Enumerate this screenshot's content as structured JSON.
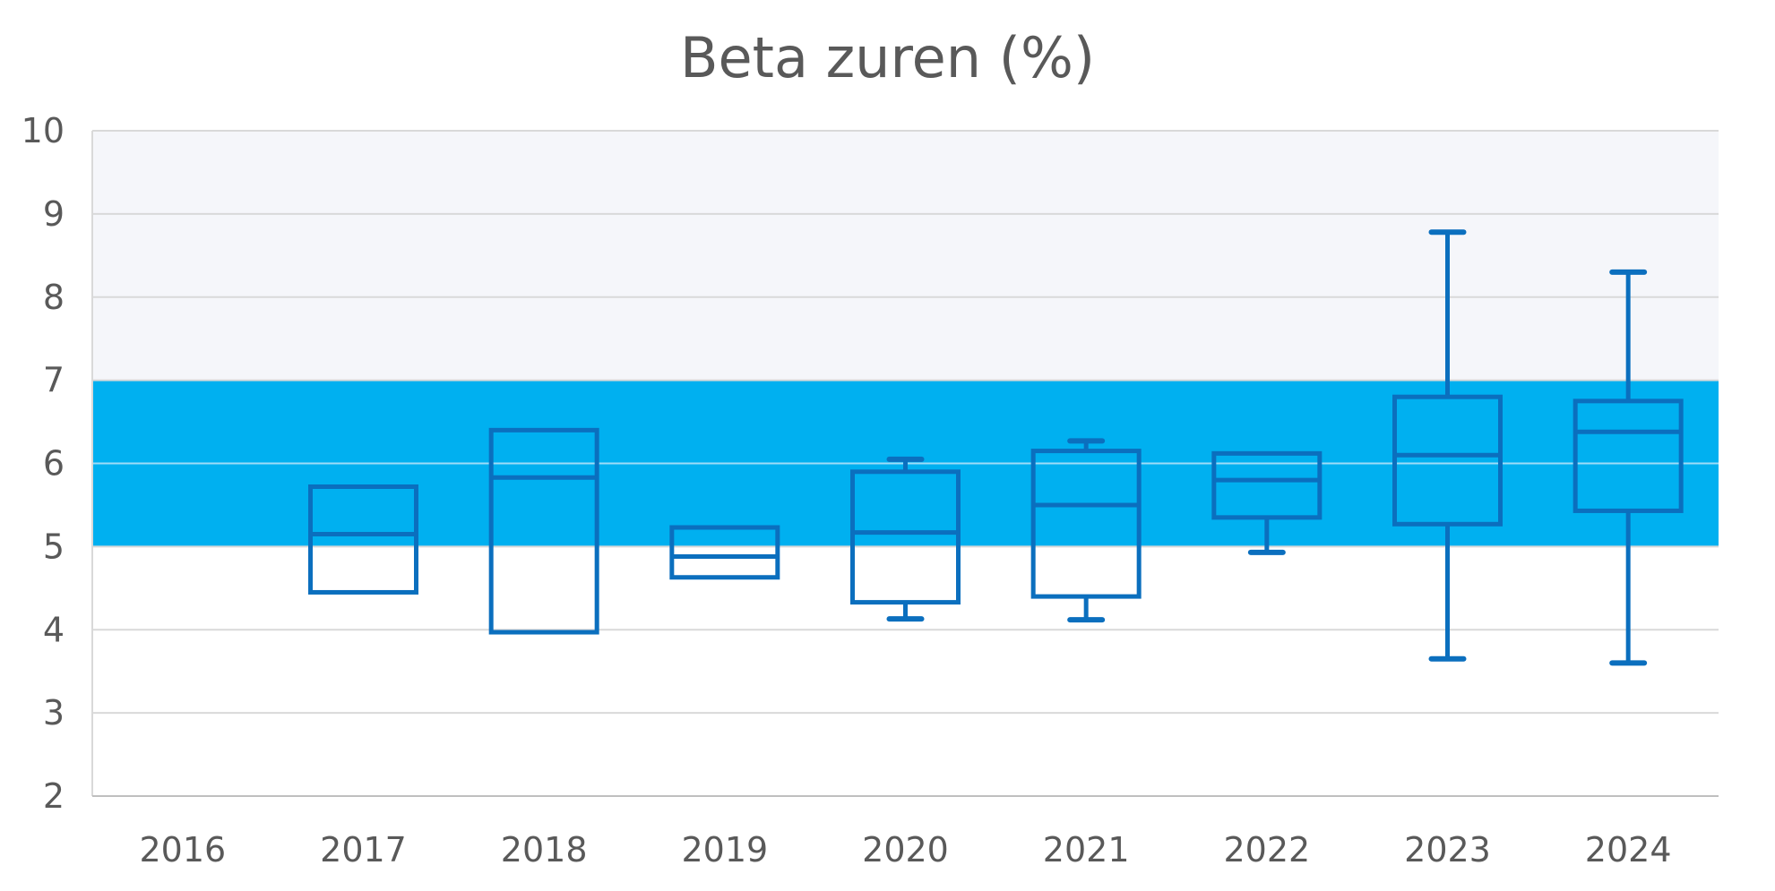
{
  "chart_data": {
    "type": "boxplot",
    "title": "Beta zuren (%)",
    "xlabel": "",
    "ylabel": "",
    "ylim": [
      2,
      10
    ],
    "yticks": [
      "2",
      "3",
      "4",
      "5",
      "6",
      "7",
      "8",
      "9",
      "10"
    ],
    "categories": [
      "2016",
      "2017",
      "2018",
      "2019",
      "2020",
      "2021",
      "2022",
      "2023",
      "2024"
    ],
    "reference_band": {
      "low": 5.0,
      "high": 7.0,
      "color": "#00B0F0"
    },
    "upper_region_color": "#F5F6FA",
    "box_color": "#0B6FBE",
    "grid": true,
    "boxes": [
      {
        "category": "2016",
        "min": null,
        "q1": null,
        "median": null,
        "q3": null,
        "max": null
      },
      {
        "category": "2017",
        "min": 4.45,
        "q1": 4.45,
        "median": 5.15,
        "q3": 5.72,
        "max": 5.72
      },
      {
        "category": "2018",
        "min": 3.97,
        "q1": 3.97,
        "median": 5.83,
        "q3": 6.4,
        "max": 6.4
      },
      {
        "category": "2019",
        "min": 4.63,
        "q1": 4.63,
        "median": 4.88,
        "q3": 5.23,
        "max": 5.23
      },
      {
        "category": "2020",
        "min": 4.13,
        "q1": 4.33,
        "median": 5.17,
        "q3": 5.9,
        "max": 6.05
      },
      {
        "category": "2021",
        "min": 4.12,
        "q1": 4.4,
        "median": 5.5,
        "q3": 6.15,
        "max": 6.27
      },
      {
        "category": "2022",
        "min": 4.93,
        "q1": 5.35,
        "median": 5.8,
        "q3": 6.12,
        "max": 6.12
      },
      {
        "category": "2023",
        "min": 3.65,
        "q1": 5.27,
        "median": 6.1,
        "q3": 6.8,
        "max": 8.78
      },
      {
        "category": "2024",
        "min": 3.6,
        "q1": 5.43,
        "median": 6.38,
        "q3": 6.75,
        "max": 8.3
      }
    ]
  }
}
